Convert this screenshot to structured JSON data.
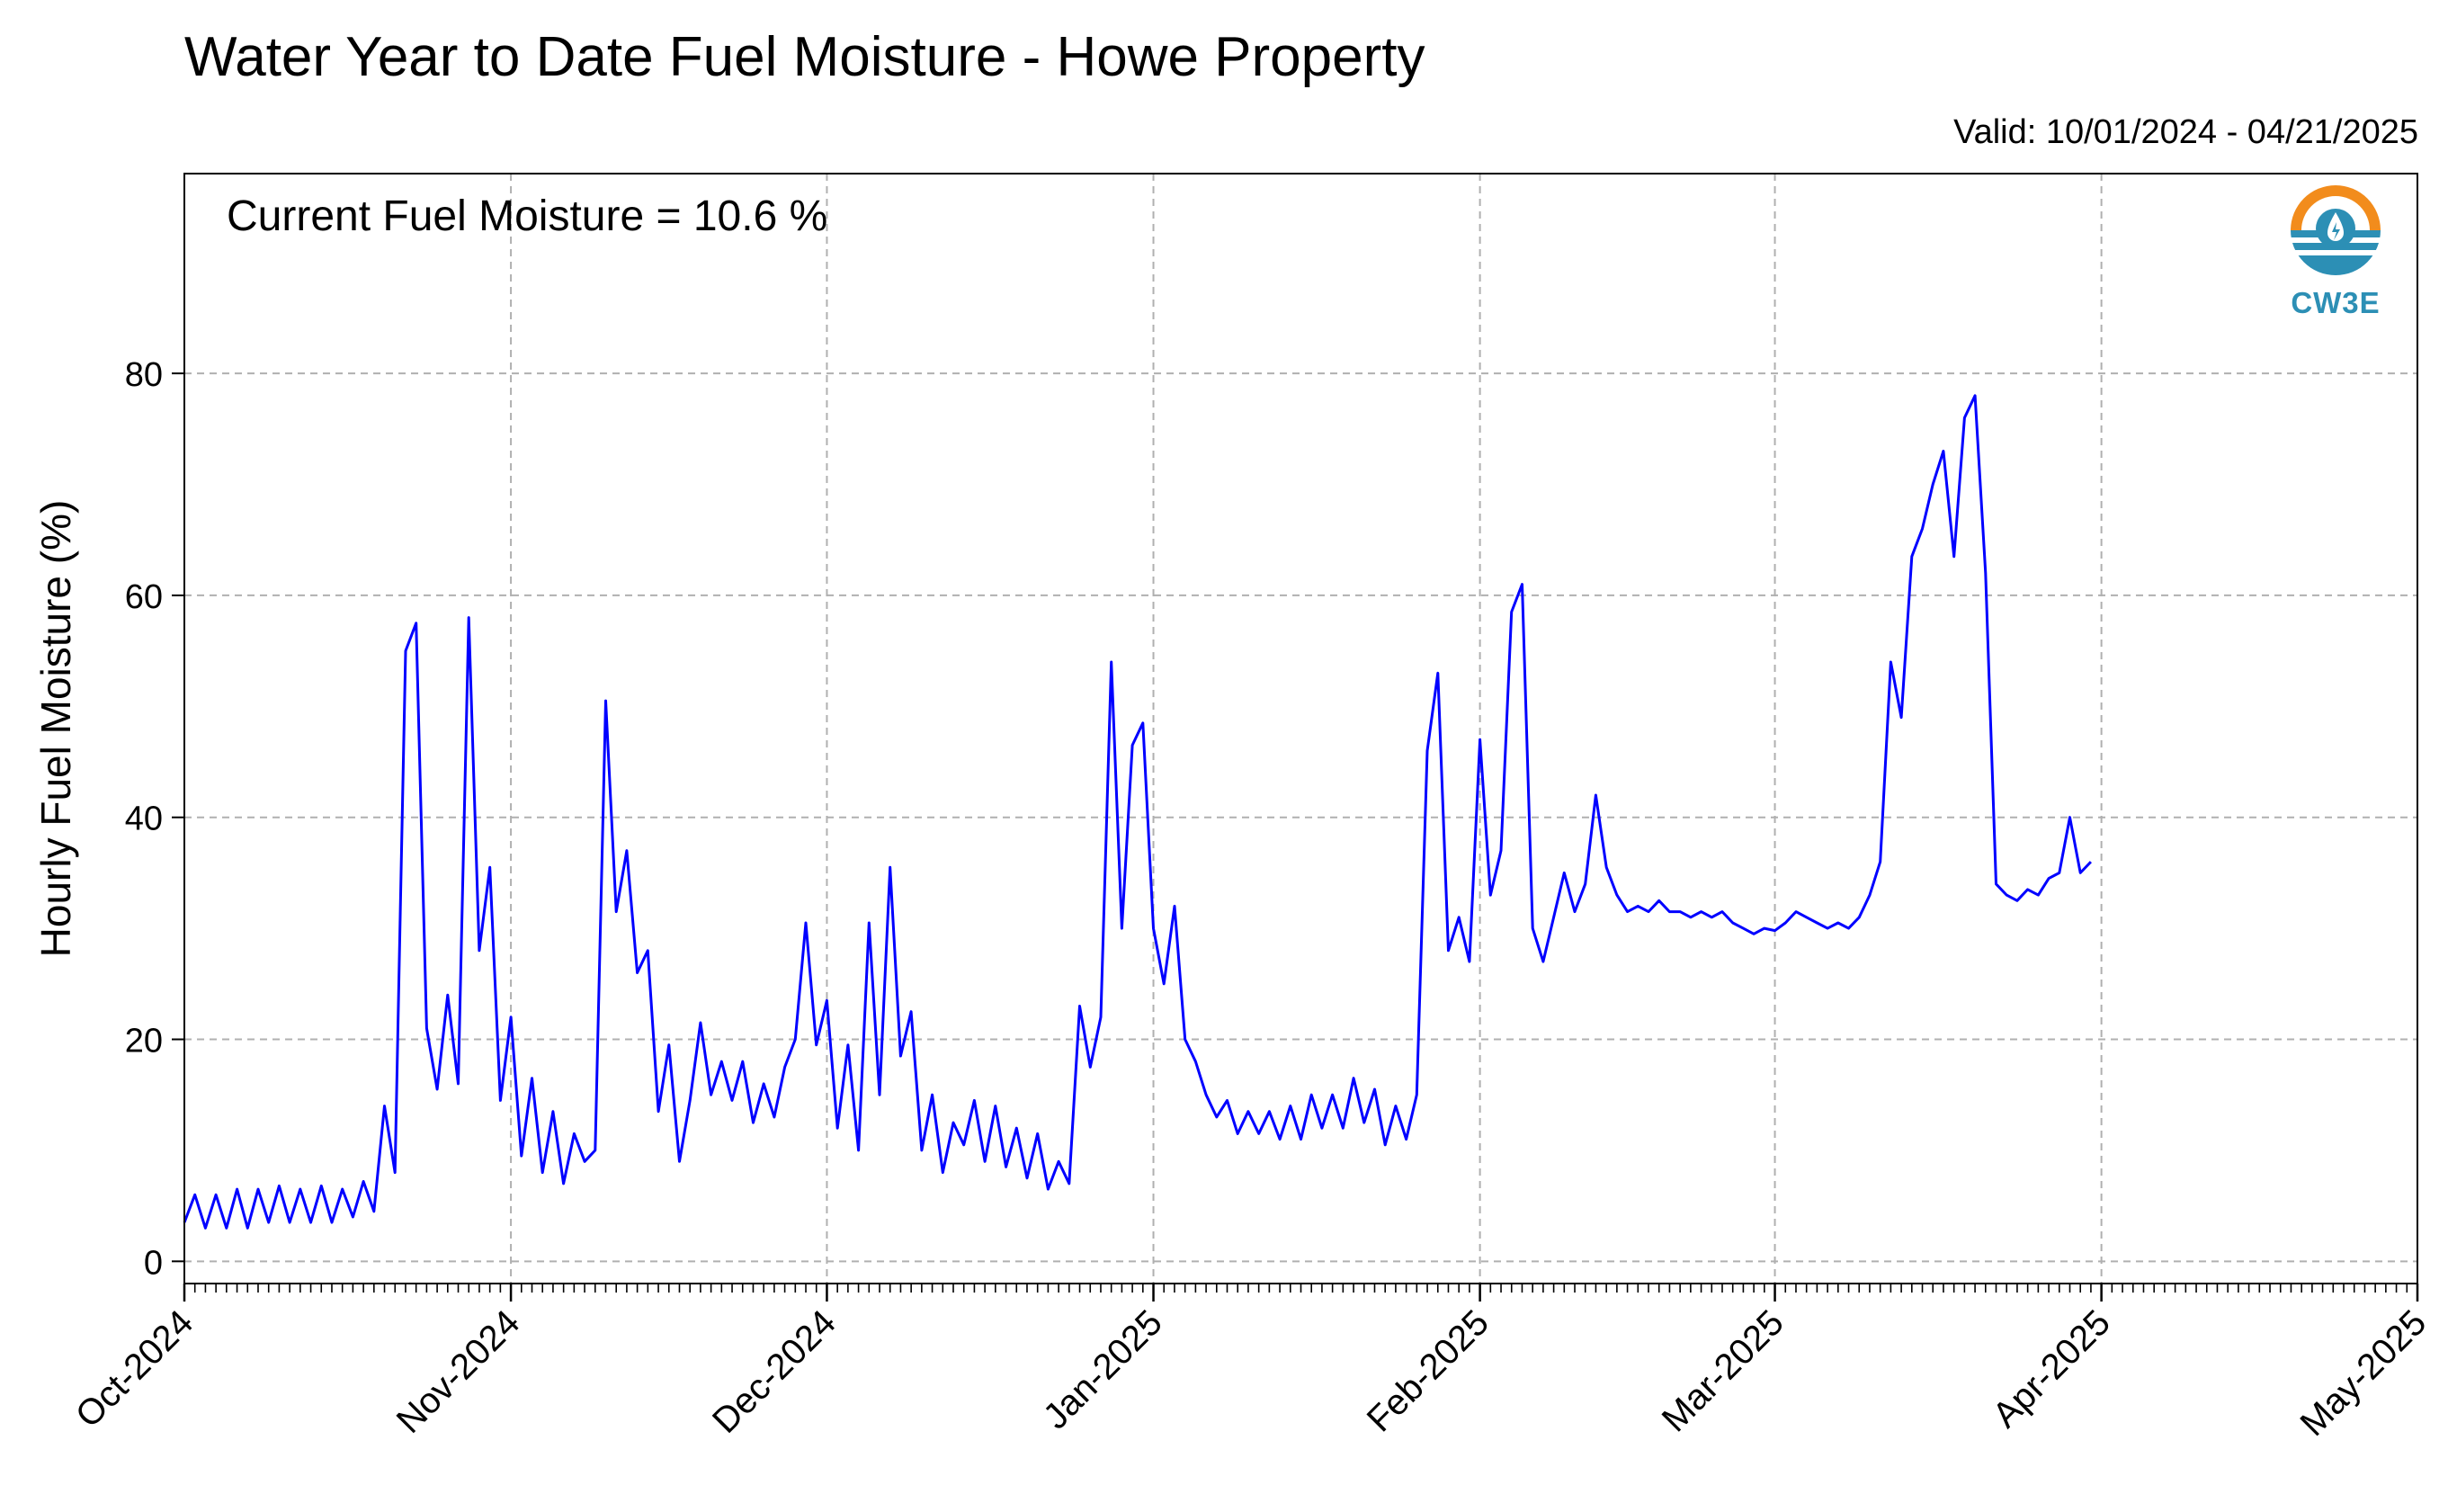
{
  "title": "Water Year to Date Fuel Moisture - Howe Property",
  "valid_label": "Valid: 10/01/2024 - 04/21/2025",
  "annotation": "Current Fuel Moisture = 10.6 %",
  "logo": {
    "name": "cw3e-logo",
    "text": "CW3E",
    "colors": {
      "sun": "#f28c1c",
      "water": "#2c8fb5"
    }
  },
  "chart_data": {
    "type": "line",
    "title": "Water Year to Date Fuel Moisture - Howe Property",
    "xlabel": "",
    "ylabel": "Hourly Fuel Moisture (%)",
    "x_start": "2024-10-01",
    "x_end": "2025-05-01",
    "ylim": [
      -2,
      98
    ],
    "y_ticks": [
      0,
      20,
      40,
      60,
      80
    ],
    "grid": true,
    "grid_style": "dashed",
    "line_color": "#0000ff",
    "x_ticks": [
      {
        "date": "2024-10-01",
        "label": "Oct-2024"
      },
      {
        "date": "2024-11-01",
        "label": "Nov-2024"
      },
      {
        "date": "2024-12-01",
        "label": "Dec-2024"
      },
      {
        "date": "2025-01-01",
        "label": "Jan-2025"
      },
      {
        "date": "2025-02-01",
        "label": "Feb-2025"
      },
      {
        "date": "2025-03-01",
        "label": "Mar-2025"
      },
      {
        "date": "2025-04-01",
        "label": "Apr-2025"
      },
      {
        "date": "2025-05-01",
        "label": "May-2025"
      }
    ],
    "series": [
      {
        "values": [
          [
            "2024-10-01",
            3.5
          ],
          [
            "2024-10-02",
            6.0
          ],
          [
            "2024-10-03",
            3.0
          ],
          [
            "2024-10-04",
            6.0
          ],
          [
            "2024-10-05",
            3.0
          ],
          [
            "2024-10-06",
            6.5
          ],
          [
            "2024-10-07",
            3.0
          ],
          [
            "2024-10-08",
            6.5
          ],
          [
            "2024-10-09",
            3.5
          ],
          [
            "2024-10-10",
            6.8
          ],
          [
            "2024-10-11",
            3.5
          ],
          [
            "2024-10-12",
            6.5
          ],
          [
            "2024-10-13",
            3.5
          ],
          [
            "2024-10-14",
            6.8
          ],
          [
            "2024-10-15",
            3.5
          ],
          [
            "2024-10-16",
            6.5
          ],
          [
            "2024-10-17",
            4.0
          ],
          [
            "2024-10-18",
            7.2
          ],
          [
            "2024-10-19",
            4.5
          ],
          [
            "2024-10-20",
            14.0
          ],
          [
            "2024-10-21",
            8.0
          ],
          [
            "2024-10-22",
            55.0
          ],
          [
            "2024-10-23",
            57.5
          ],
          [
            "2024-10-24",
            21.0
          ],
          [
            "2024-10-25",
            15.5
          ],
          [
            "2024-10-26",
            24.0
          ],
          [
            "2024-10-27",
            16.0
          ],
          [
            "2024-10-28",
            58.0
          ],
          [
            "2024-10-29",
            28.0
          ],
          [
            "2024-10-30",
            35.5
          ],
          [
            "2024-10-31",
            14.5
          ],
          [
            "2024-11-01",
            22.0
          ],
          [
            "2024-11-02",
            9.5
          ],
          [
            "2024-11-03",
            16.5
          ],
          [
            "2024-11-04",
            8.0
          ],
          [
            "2024-11-05",
            13.5
          ],
          [
            "2024-11-06",
            7.0
          ],
          [
            "2024-11-07",
            11.5
          ],
          [
            "2024-11-08",
            9.0
          ],
          [
            "2024-11-09",
            10.0
          ],
          [
            "2024-11-10",
            50.5
          ],
          [
            "2024-11-11",
            31.5
          ],
          [
            "2024-11-12",
            37.0
          ],
          [
            "2024-11-13",
            26.0
          ],
          [
            "2024-11-14",
            28.0
          ],
          [
            "2024-11-15",
            13.5
          ],
          [
            "2024-11-16",
            19.5
          ],
          [
            "2024-11-17",
            9.0
          ],
          [
            "2024-11-18",
            14.5
          ],
          [
            "2024-11-19",
            21.5
          ],
          [
            "2024-11-20",
            15.0
          ],
          [
            "2024-11-21",
            18.0
          ],
          [
            "2024-11-22",
            14.5
          ],
          [
            "2024-11-23",
            18.0
          ],
          [
            "2024-11-24",
            12.5
          ],
          [
            "2024-11-25",
            16.0
          ],
          [
            "2024-11-26",
            13.0
          ],
          [
            "2024-11-27",
            17.5
          ],
          [
            "2024-11-28",
            20.0
          ],
          [
            "2024-11-29",
            30.5
          ],
          [
            "2024-11-30",
            19.5
          ],
          [
            "2024-12-01",
            23.5
          ],
          [
            "2024-12-02",
            12.0
          ],
          [
            "2024-12-03",
            19.5
          ],
          [
            "2024-12-04",
            10.0
          ],
          [
            "2024-12-05",
            30.5
          ],
          [
            "2024-12-06",
            15.0
          ],
          [
            "2024-12-07",
            35.5
          ],
          [
            "2024-12-08",
            18.5
          ],
          [
            "2024-12-09",
            22.5
          ],
          [
            "2024-12-10",
            10.0
          ],
          [
            "2024-12-11",
            15.0
          ],
          [
            "2024-12-12",
            8.0
          ],
          [
            "2024-12-13",
            12.5
          ],
          [
            "2024-12-14",
            10.5
          ],
          [
            "2024-12-15",
            14.5
          ],
          [
            "2024-12-16",
            9.0
          ],
          [
            "2024-12-17",
            14.0
          ],
          [
            "2024-12-18",
            8.5
          ],
          [
            "2024-12-19",
            12.0
          ],
          [
            "2024-12-20",
            7.5
          ],
          [
            "2024-12-21",
            11.5
          ],
          [
            "2024-12-22",
            6.5
          ],
          [
            "2024-12-23",
            9.0
          ],
          [
            "2024-12-24",
            7.0
          ],
          [
            "2024-12-25",
            23.0
          ],
          [
            "2024-12-26",
            17.5
          ],
          [
            "2024-12-27",
            22.0
          ],
          [
            "2024-12-28",
            54.0
          ],
          [
            "2024-12-29",
            30.0
          ],
          [
            "2024-12-30",
            46.5
          ],
          [
            "2024-12-31",
            48.5
          ]
        ],
        "values_note": "",
        "values_extra": [
          [
            "2025-01-01",
            30.0
          ],
          [
            "2025-01-02",
            25.0
          ],
          [
            "2025-01-03",
            32.0
          ],
          [
            "2025-01-04",
            20.0
          ],
          [
            "2025-01-05",
            18.0
          ],
          [
            "2025-01-06",
            15.0
          ],
          [
            "2025-01-07",
            13.0
          ],
          [
            "2025-01-08",
            14.5
          ],
          [
            "2025-01-09",
            11.5
          ],
          [
            "2025-01-10",
            13.5
          ],
          [
            "2025-01-11",
            11.5
          ],
          [
            "2025-01-12",
            13.5
          ],
          [
            "2025-01-13",
            11.0
          ],
          [
            "2025-01-14",
            14.0
          ],
          [
            "2025-01-15",
            11.0
          ],
          [
            "2025-01-16",
            15.0
          ],
          [
            "2025-01-17",
            12.0
          ],
          [
            "2025-01-18",
            15.0
          ],
          [
            "2025-01-19",
            12.0
          ],
          [
            "2025-01-20",
            16.5
          ],
          [
            "2025-01-21",
            12.5
          ],
          [
            "2025-01-22",
            15.5
          ],
          [
            "2025-01-23",
            10.5
          ],
          [
            "2025-01-24",
            14.0
          ],
          [
            "2025-01-25",
            11.0
          ],
          [
            "2025-01-26",
            15.0
          ],
          [
            "2025-01-27",
            46.0
          ],
          [
            "2025-01-28",
            53.0
          ],
          [
            "2025-01-29",
            28.0
          ],
          [
            "2025-01-30",
            31.0
          ],
          [
            "2025-01-31",
            27.0
          ],
          [
            "2025-02-01",
            47.0
          ],
          [
            "2025-02-02",
            33.0
          ],
          [
            "2025-02-03",
            37.0
          ],
          [
            "2025-02-04",
            58.5
          ],
          [
            "2025-02-05",
            61.0
          ],
          [
            "2025-02-06",
            30.0
          ],
          [
            "2025-02-07",
            27.0
          ],
          [
            "2025-02-08",
            31.0
          ],
          [
            "2025-02-09",
            35.0
          ],
          [
            "2025-02-10",
            31.5
          ],
          [
            "2025-02-11",
            34.0
          ],
          [
            "2025-02-12",
            42.0
          ],
          [
            "2025-02-13",
            35.5
          ],
          [
            "2025-02-14",
            33.0
          ],
          [
            "2025-02-15",
            31.5
          ],
          [
            "2025-02-16",
            32.0
          ],
          [
            "2025-02-17",
            31.5
          ],
          [
            "2025-02-18",
            32.5
          ],
          [
            "2025-02-19",
            31.5
          ],
          [
            "2025-02-20",
            31.5
          ],
          [
            "2025-02-21",
            31.0
          ],
          [
            "2025-02-22",
            31.5
          ],
          [
            "2025-02-23",
            31.0
          ],
          [
            "2025-02-24",
            31.5
          ],
          [
            "2025-02-25",
            30.5
          ],
          [
            "2025-02-26",
            30.0
          ],
          [
            "2025-02-27",
            29.5
          ],
          [
            "2025-02-28",
            30.0
          ]
        ]
      }
    ],
    "series_tail": [
      [
        "2025-03-01",
        29.8
      ],
      [
        "2025-03-02",
        30.5
      ],
      [
        "2025-03-03",
        31.5
      ],
      [
        "2025-03-04",
        31.0
      ],
      [
        "2025-03-05",
        30.5
      ],
      [
        "2025-03-06",
        30.0
      ],
      [
        "2025-03-07",
        30.5
      ],
      [
        "2025-03-08",
        30.0
      ],
      [
        "2025-03-09",
        31.0
      ],
      [
        "2025-03-10",
        33.0
      ],
      [
        "2025-03-11",
        36.0
      ],
      [
        "2025-03-12",
        54.0
      ],
      [
        "2025-03-13",
        49.0
      ],
      [
        "2025-03-14",
        63.5
      ],
      [
        "2025-03-15",
        66.0
      ],
      [
        "2025-03-16",
        70.0
      ],
      [
        "2025-03-17",
        73.0
      ],
      [
        "2025-03-18",
        63.5
      ],
      [
        "2025-03-19",
        76.0
      ],
      [
        "2025-03-20",
        78.0
      ],
      [
        "2025-03-21",
        62.0
      ],
      [
        "2025-03-22",
        34.0
      ],
      [
        "2025-03-23",
        33.0
      ],
      [
        "2025-03-24",
        32.5
      ],
      [
        "2025-03-25",
        33.5
      ],
      [
        "2025-03-26",
        33.0
      ],
      [
        "2025-03-27",
        34.5
      ],
      [
        "2025-03-28",
        35.0
      ],
      [
        "2025-03-29",
        40.0
      ],
      [
        "2025-03-30",
        35.0
      ],
      [
        "2025-03-31",
        36.0
      ]
    ]
  }
}
